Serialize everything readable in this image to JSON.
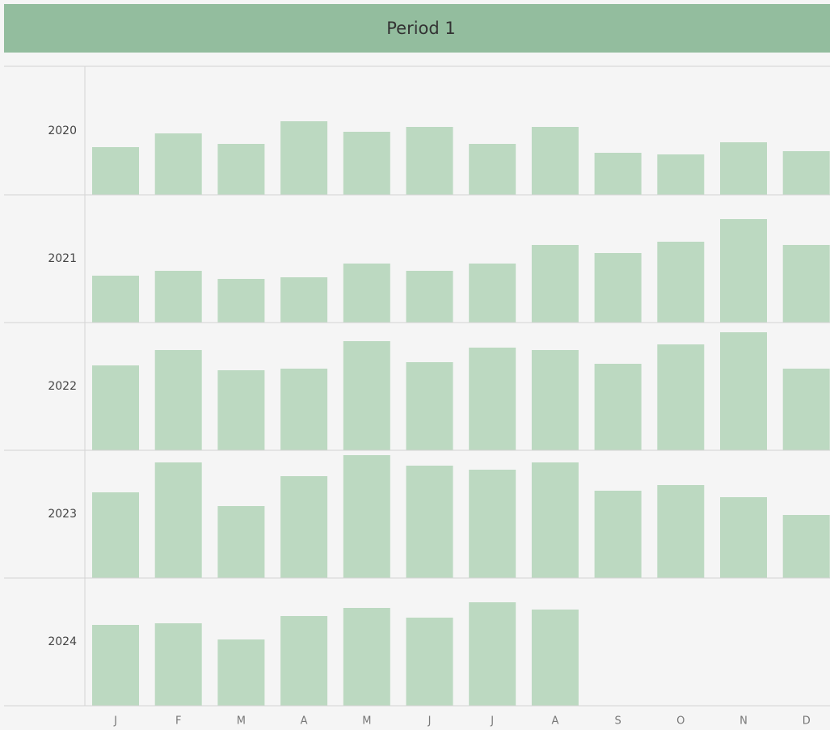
{
  "chart_data": {
    "type": "bar",
    "title": "Period 1",
    "categories": [
      "J",
      "F",
      "M",
      "A",
      "M",
      "J",
      "J",
      "A",
      "S",
      "O",
      "N",
      "D"
    ],
    "color": "#bcd9c1",
    "header_color": "#93bd9e",
    "ylim": [
      0,
      158
    ],
    "series": [
      {
        "name": "2020",
        "values": [
          59,
          76,
          63,
          91,
          78,
          84,
          63,
          84,
          52,
          50,
          65,
          54
        ]
      },
      {
        "name": "2021",
        "values": [
          58,
          64,
          54,
          56,
          73,
          64,
          73,
          96,
          86,
          100,
          128,
          96
        ]
      },
      {
        "name": "2022",
        "values": [
          105,
          124,
          99,
          101,
          135,
          109,
          127,
          124,
          107,
          131,
          146,
          101
        ]
      },
      {
        "name": "2023",
        "values": [
          106,
          143,
          89,
          126,
          152,
          139,
          134,
          143,
          108,
          115,
          100,
          78
        ]
      },
      {
        "name": "2024",
        "values": [
          100,
          102,
          82,
          111,
          121,
          109,
          128,
          119,
          null,
          null,
          null,
          null
        ]
      }
    ]
  }
}
